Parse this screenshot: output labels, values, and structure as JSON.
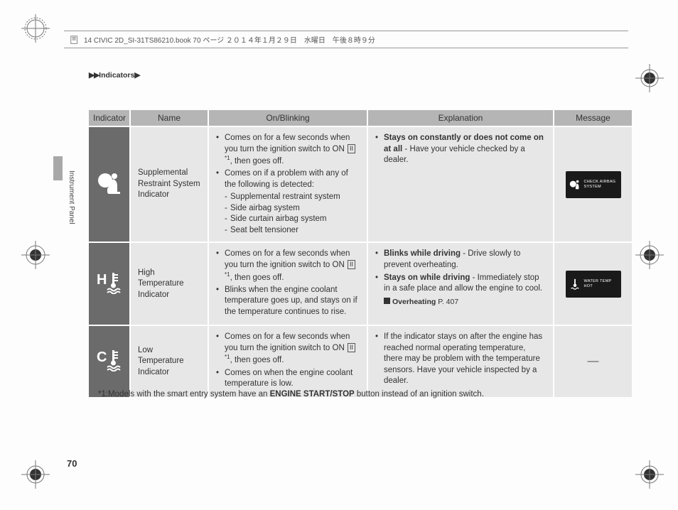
{
  "print_header": {
    "text": "14 CIVIC 2D_SI-31TS86210.book  70 ページ  ２０１４年１月２９日　水曜日　午後８時９分"
  },
  "breadcrumb": {
    "arrows": "▶▶",
    "label": "Indicators",
    "tail": "▶"
  },
  "side_label": "Instrument Panel",
  "page_number": "70",
  "columns": {
    "c1": "Indicator",
    "c2": "Name",
    "c3": "On/Blinking",
    "c4": "Explanation",
    "c5": "Message",
    "widths": {
      "c1": 58,
      "c2": 110,
      "c3": 224,
      "c4": 262,
      "c5": 110
    }
  },
  "rows": [
    {
      "id": "srs",
      "name": "Supplemental Restraint System Indicator",
      "on": {
        "items": [
          "Comes on for a few seconds when you turn the ignition switch to ON {KEY}*1, then goes off.",
          "Comes on if a problem with any of the following is detected:"
        ],
        "sub": [
          "Supplemental restraint system",
          "Side airbag system",
          "Side curtain airbag system",
          "Seat belt tensioner"
        ]
      },
      "exp": {
        "items": [
          "{B}Stays on constantly or does not come on at all{/B} - Have your vehicle checked by a dealer."
        ]
      },
      "msg": {
        "text": "CHECK AIRBAG SYSTEM",
        "icon": "airbag"
      }
    },
    {
      "id": "hitemp",
      "name": "High Temperature Indicator",
      "icon_letter": "H",
      "on": {
        "items": [
          "Comes on for a few seconds when you turn the ignition switch to ON {KEY}*1, then goes off.",
          "Blinks when the engine coolant temperature goes up, and stays on if the temperature continues to rise."
        ]
      },
      "exp": {
        "items": [
          "{B}Blinks while driving{/B} - Drive slowly to prevent overheating.",
          "{B}Stays on while driving{/B} - Immediately stop in a safe place and allow the engine to cool."
        ],
        "ref": {
          "title": "Overheating",
          "page": "P. 407"
        }
      },
      "msg": {
        "text": "WATER TEMP HOT",
        "icon": "temp"
      }
    },
    {
      "id": "lotemp",
      "name": "Low Temperature Indicator",
      "icon_letter": "C",
      "on": {
        "items": [
          "Comes on for a few seconds when you turn the ignition switch to ON {KEY}*1, then goes off.",
          "Comes on when the engine coolant temperature is low."
        ]
      },
      "exp": {
        "items": [
          "If the indicator stays on after the engine has reached normal operating temperature, there may be problem with the temperature sensors. Have your vehicle inspected by a dealer."
        ]
      },
      "msg": {
        "text": "—",
        "icon": "none"
      }
    }
  ],
  "key_symbol": "II",
  "footnote": {
    "prefix": "*1:",
    "text_before": "Models with the smart entry system have an ",
    "bold": "ENGINE START/STOP",
    "text_after": " button instead of an ignition switch."
  },
  "colors": {
    "header_bg": "#b5b5b6",
    "cell_bg": "#e7e7e7",
    "icon_cell_bg": "#6b6b6b",
    "text": "#333333",
    "page_bg": "#fdfdfd"
  }
}
